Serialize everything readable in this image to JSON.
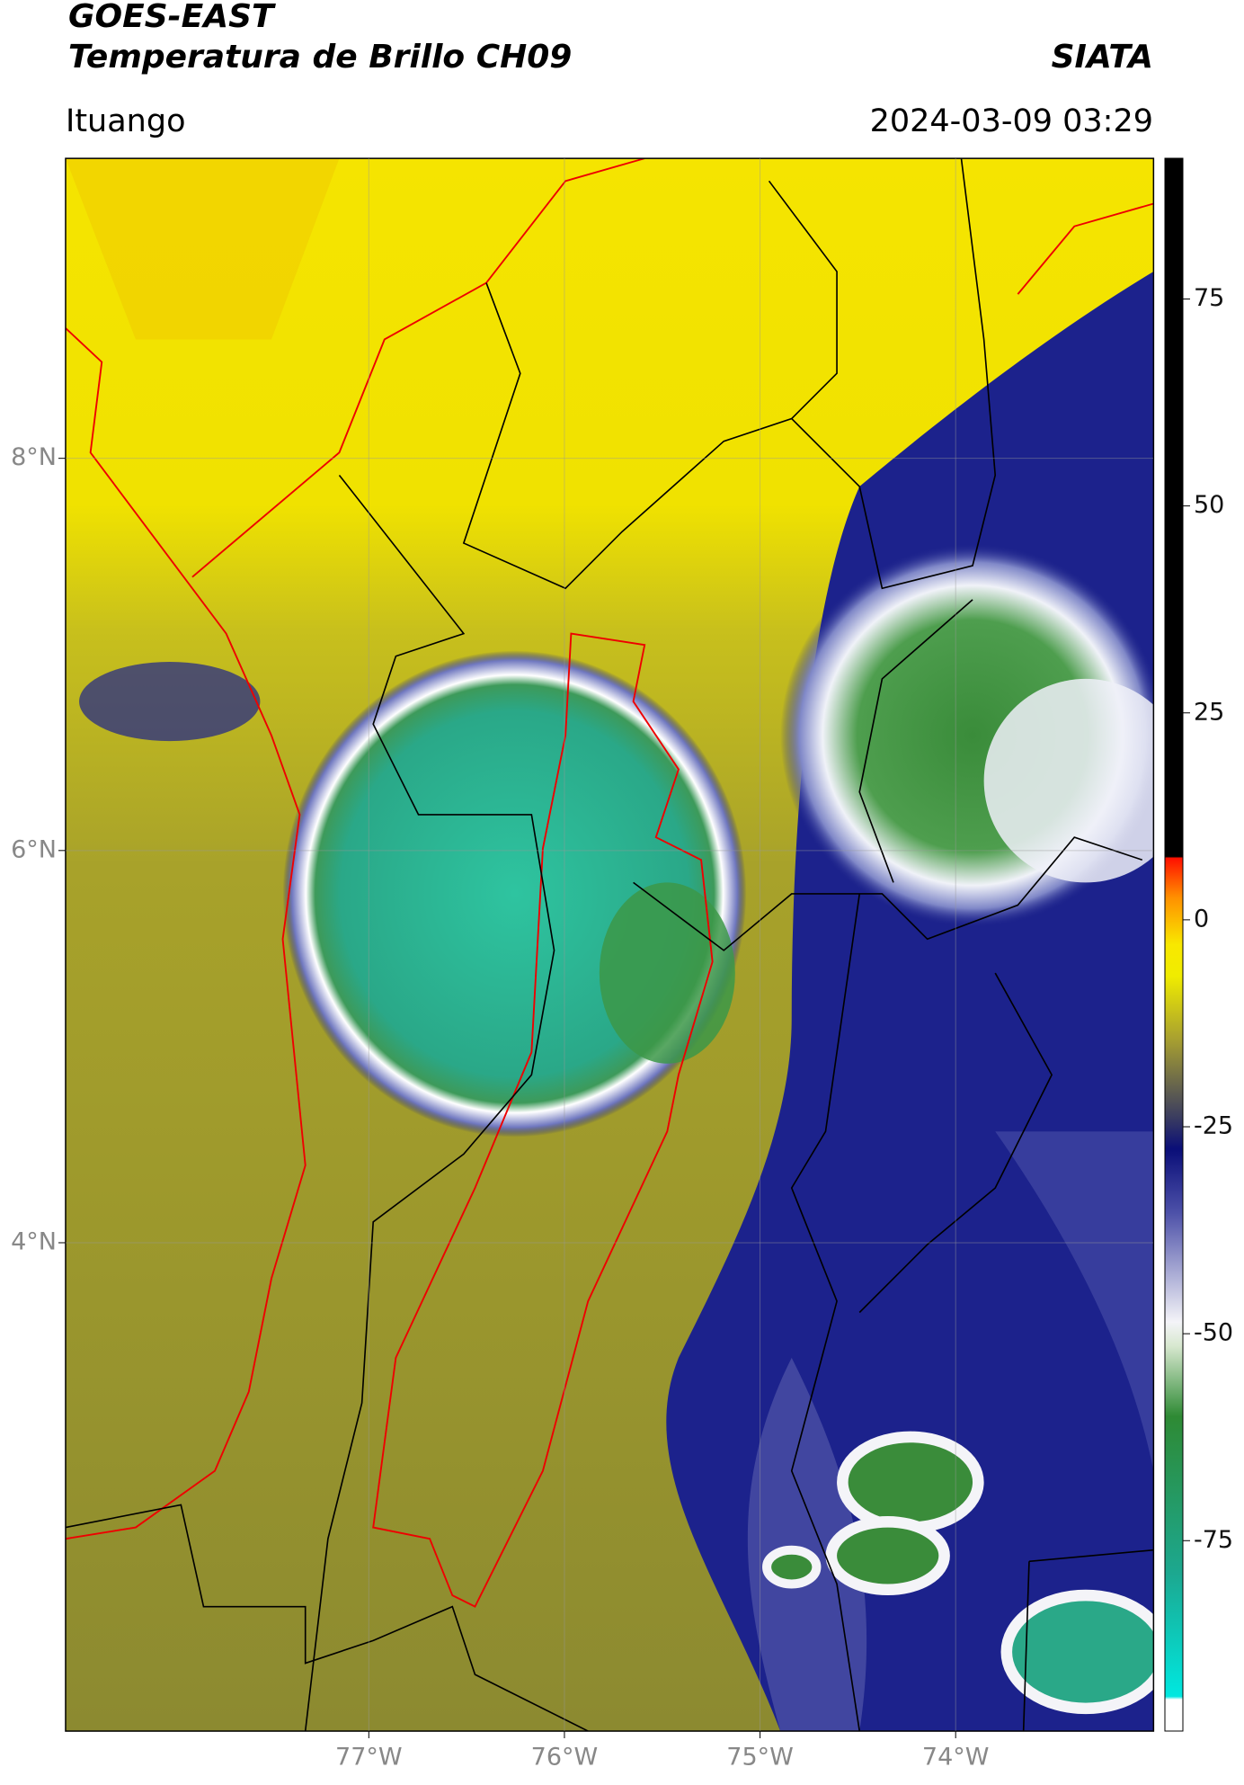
{
  "header": {
    "title": "GOES-EAST",
    "subtitle": "Temperatura de Brillo CH09",
    "source": "SIATA",
    "location": "Ituango",
    "timestamp": "2024-03-09 03:29"
  },
  "map": {
    "xlim": [
      -78.55,
      -72.99
    ],
    "ylim": [
      1.51,
      9.53
    ],
    "grid": true,
    "xticks": [
      {
        "value": -77,
        "label": "77°W"
      },
      {
        "value": -76,
        "label": "76°W"
      },
      {
        "value": -75,
        "label": "75°W"
      },
      {
        "value": -74,
        "label": "74°W"
      }
    ],
    "yticks": [
      {
        "value": 4,
        "label": "4°N"
      },
      {
        "value": 6,
        "label": "6°N"
      },
      {
        "value": 8,
        "label": "8°N"
      }
    ]
  },
  "colorbar": {
    "lim": [
      -98,
      92
    ],
    "ticks": [
      -75,
      -50,
      -25,
      0,
      25,
      50,
      75
    ]
  }
}
